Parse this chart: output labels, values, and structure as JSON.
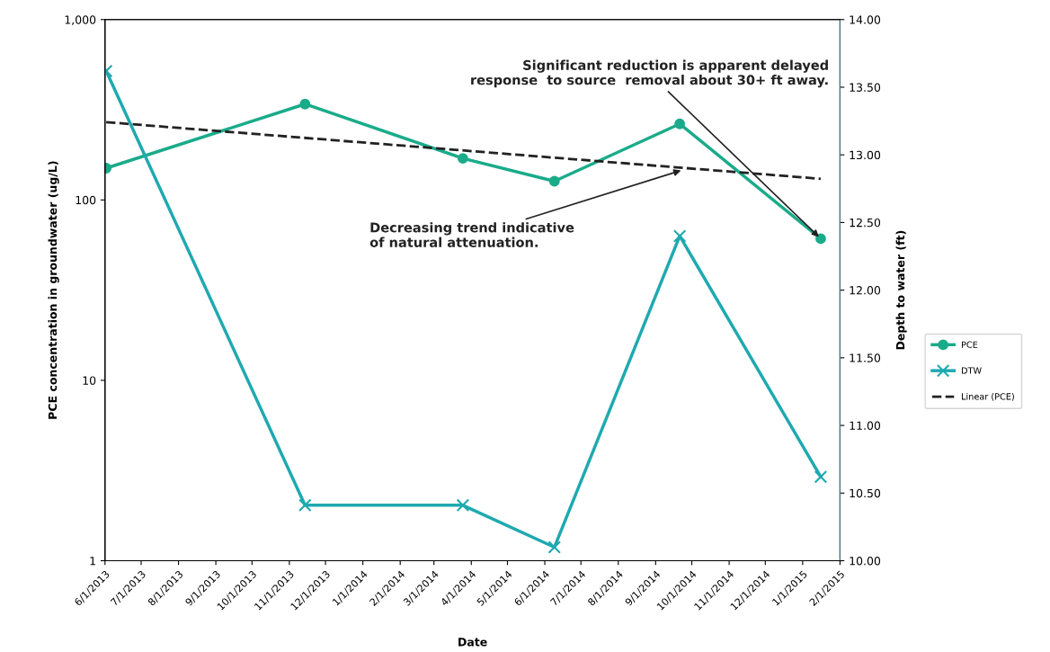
{
  "chart_data": {
    "type": "line",
    "xlabel": "Date",
    "ylabel": "PCE concentration in groundwater (ug/L)",
    "y2label": "Depth to water (ft)",
    "log": "y",
    "grid": false,
    "legend": "right",
    "xlim": [
      "2013-06-01",
      "2015-02-01"
    ],
    "xticks": [
      {
        "value": "2013-06-01",
        "label": "6/1/2013"
      },
      {
        "value": "2013-07-01",
        "label": "7/1/2013"
      },
      {
        "value": "2013-08-01",
        "label": "8/1/2013"
      },
      {
        "value": "2013-09-01",
        "label": "9/1/2013"
      },
      {
        "value": "2013-10-01",
        "label": "10/1/2013"
      },
      {
        "value": "2013-11-01",
        "label": "11/1/2013"
      },
      {
        "value": "2013-12-01",
        "label": "12/1/2013"
      },
      {
        "value": "2014-01-01",
        "label": "1/1/2014"
      },
      {
        "value": "2014-02-01",
        "label": "2/1/2014"
      },
      {
        "value": "2014-03-01",
        "label": "3/1/2014"
      },
      {
        "value": "2014-04-01",
        "label": "4/1/2014"
      },
      {
        "value": "2014-05-01",
        "label": "5/1/2014"
      },
      {
        "value": "2014-06-01",
        "label": "6/1/2014"
      },
      {
        "value": "2014-07-01",
        "label": "7/1/2014"
      },
      {
        "value": "2014-08-01",
        "label": "8/1/2014"
      },
      {
        "value": "2014-09-01",
        "label": "9/1/2014"
      },
      {
        "value": "2014-10-01",
        "label": "10/1/2014"
      },
      {
        "value": "2014-11-01",
        "label": "11/1/2014"
      },
      {
        "value": "2014-12-01",
        "label": "12/1/2014"
      },
      {
        "value": "2015-01-01",
        "label": "1/1/2015"
      },
      {
        "value": "2015-02-01",
        "label": "2/1/2015"
      }
    ],
    "ylim": [
      1,
      1000
    ],
    "yticks": [
      1,
      10,
      100,
      {
        "value": 1000,
        "label": "1,000"
      }
    ],
    "y2lim": [
      10,
      14
    ],
    "y2ticks": [
      {
        "value": 10,
        "label": "10.00"
      },
      {
        "value": 10.5,
        "label": "10.50"
      },
      {
        "value": 11,
        "label": "11.00"
      },
      {
        "value": 11.5,
        "label": "11.50"
      },
      {
        "value": 12,
        "label": "12.00"
      },
      {
        "value": 12.5,
        "label": "12.50"
      },
      {
        "value": 13,
        "label": "13.00"
      },
      {
        "value": 13.5,
        "label": "13.50"
      },
      {
        "value": 14,
        "label": "14.00"
      }
    ],
    "series": [
      {
        "name": "PCE",
        "color": "#1aab8a",
        "marker": "circle",
        "line_style": "solid",
        "x": [
          "2013-06-02",
          "2013-11-14",
          "2014-03-25",
          "2014-06-09",
          "2014-09-21",
          "2015-01-16"
        ],
        "values": [
          150,
          340,
          170,
          127,
          264,
          61
        ]
      },
      {
        "name": "DTW",
        "color": "#1fa9b0",
        "marker": "cross",
        "line_style": "solid",
        "axis": "y2",
        "x": [
          "2013-06-02",
          "2013-11-14",
          "2014-03-25",
          "2014-06-09",
          "2014-09-21",
          "2015-01-16"
        ],
        "values": [
          13.62,
          10.41,
          10.41,
          10.1,
          12.4,
          10.62
        ]
      },
      {
        "name": "Linear (PCE)",
        "color": "#222222",
        "marker": "none",
        "line_style": "dashed",
        "x": [
          "2013-06-02",
          "2015-01-16"
        ],
        "values": [
          270,
          131
        ]
      }
    ],
    "annotations": [
      {
        "text": "Significant reduction is apparent delayed\nresponse  to source  removal about 30+ ft away.",
        "x": "2015-01-16",
        "y": 61
      },
      {
        "text": "Decreasing trend indicative\nof natural attenuation.",
        "x": "2014-09-24",
        "y": 147
      }
    ]
  }
}
